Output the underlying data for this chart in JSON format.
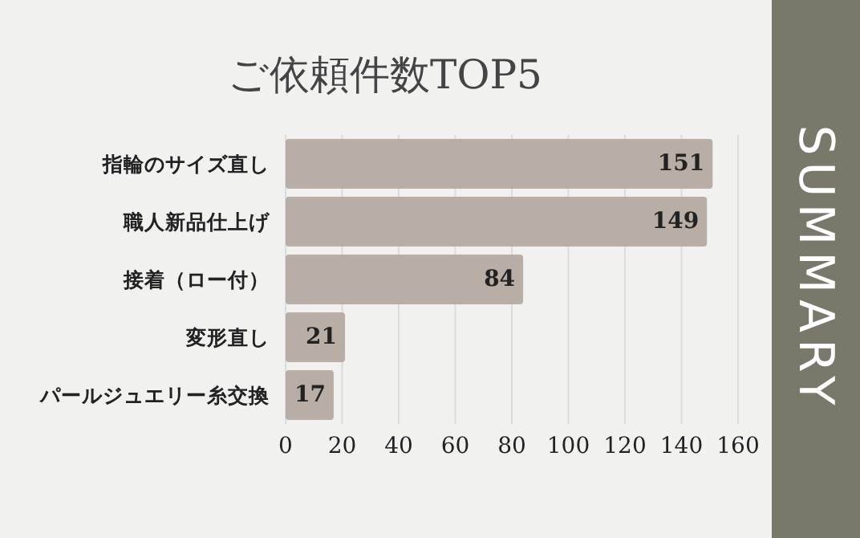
{
  "chart_data": {
    "type": "bar",
    "orientation": "horizontal",
    "title": "ご依頼件数TOP5",
    "categories": [
      "指輪のサイズ直し",
      "職人新品仕上げ",
      "接着（ロー付）",
      "変形直し",
      "パールジュエリー糸交換"
    ],
    "values": [
      151,
      149,
      84,
      21,
      17
    ],
    "color": "#b8aea5",
    "xlim": [
      0,
      160
    ],
    "xticks": [
      0,
      20,
      40,
      60,
      80,
      100,
      120,
      140,
      160
    ],
    "grid": "x",
    "data_labels": true,
    "annotations": [
      "SUMMARY"
    ]
  }
}
